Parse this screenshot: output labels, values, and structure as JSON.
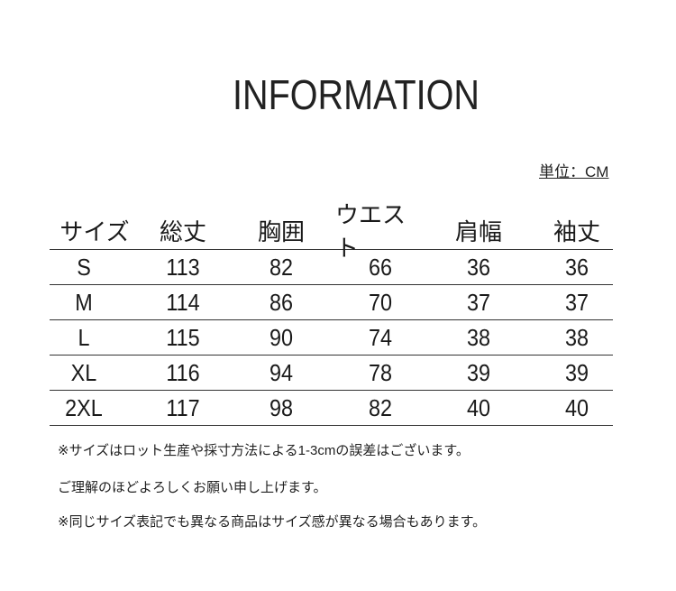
{
  "title": "INFORMATION",
  "unit": "単位：CM",
  "table": {
    "headers": [
      "サイズ",
      "総丈",
      "胸囲",
      "ウエスト",
      "肩幅",
      "袖丈"
    ],
    "rows": [
      [
        "S",
        "113",
        "82",
        "66",
        "36",
        "36"
      ],
      [
        "M",
        "114",
        "86",
        "70",
        "37",
        "37"
      ],
      [
        "L",
        "115",
        "90",
        "74",
        "38",
        "38"
      ],
      [
        "XL",
        "116",
        "94",
        "78",
        "39",
        "39"
      ],
      [
        "2XL",
        "117",
        "98",
        "82",
        "40",
        "40"
      ]
    ]
  },
  "notes": [
    "※サイズはロット生産や採寸方法による1-3cmの誤差はございます。",
    "ご理解のほどよろしくお願い申し上げます。",
    "※同じサイズ表記でも異なる商品はサイズ感が異なる場合もあります。"
  ]
}
